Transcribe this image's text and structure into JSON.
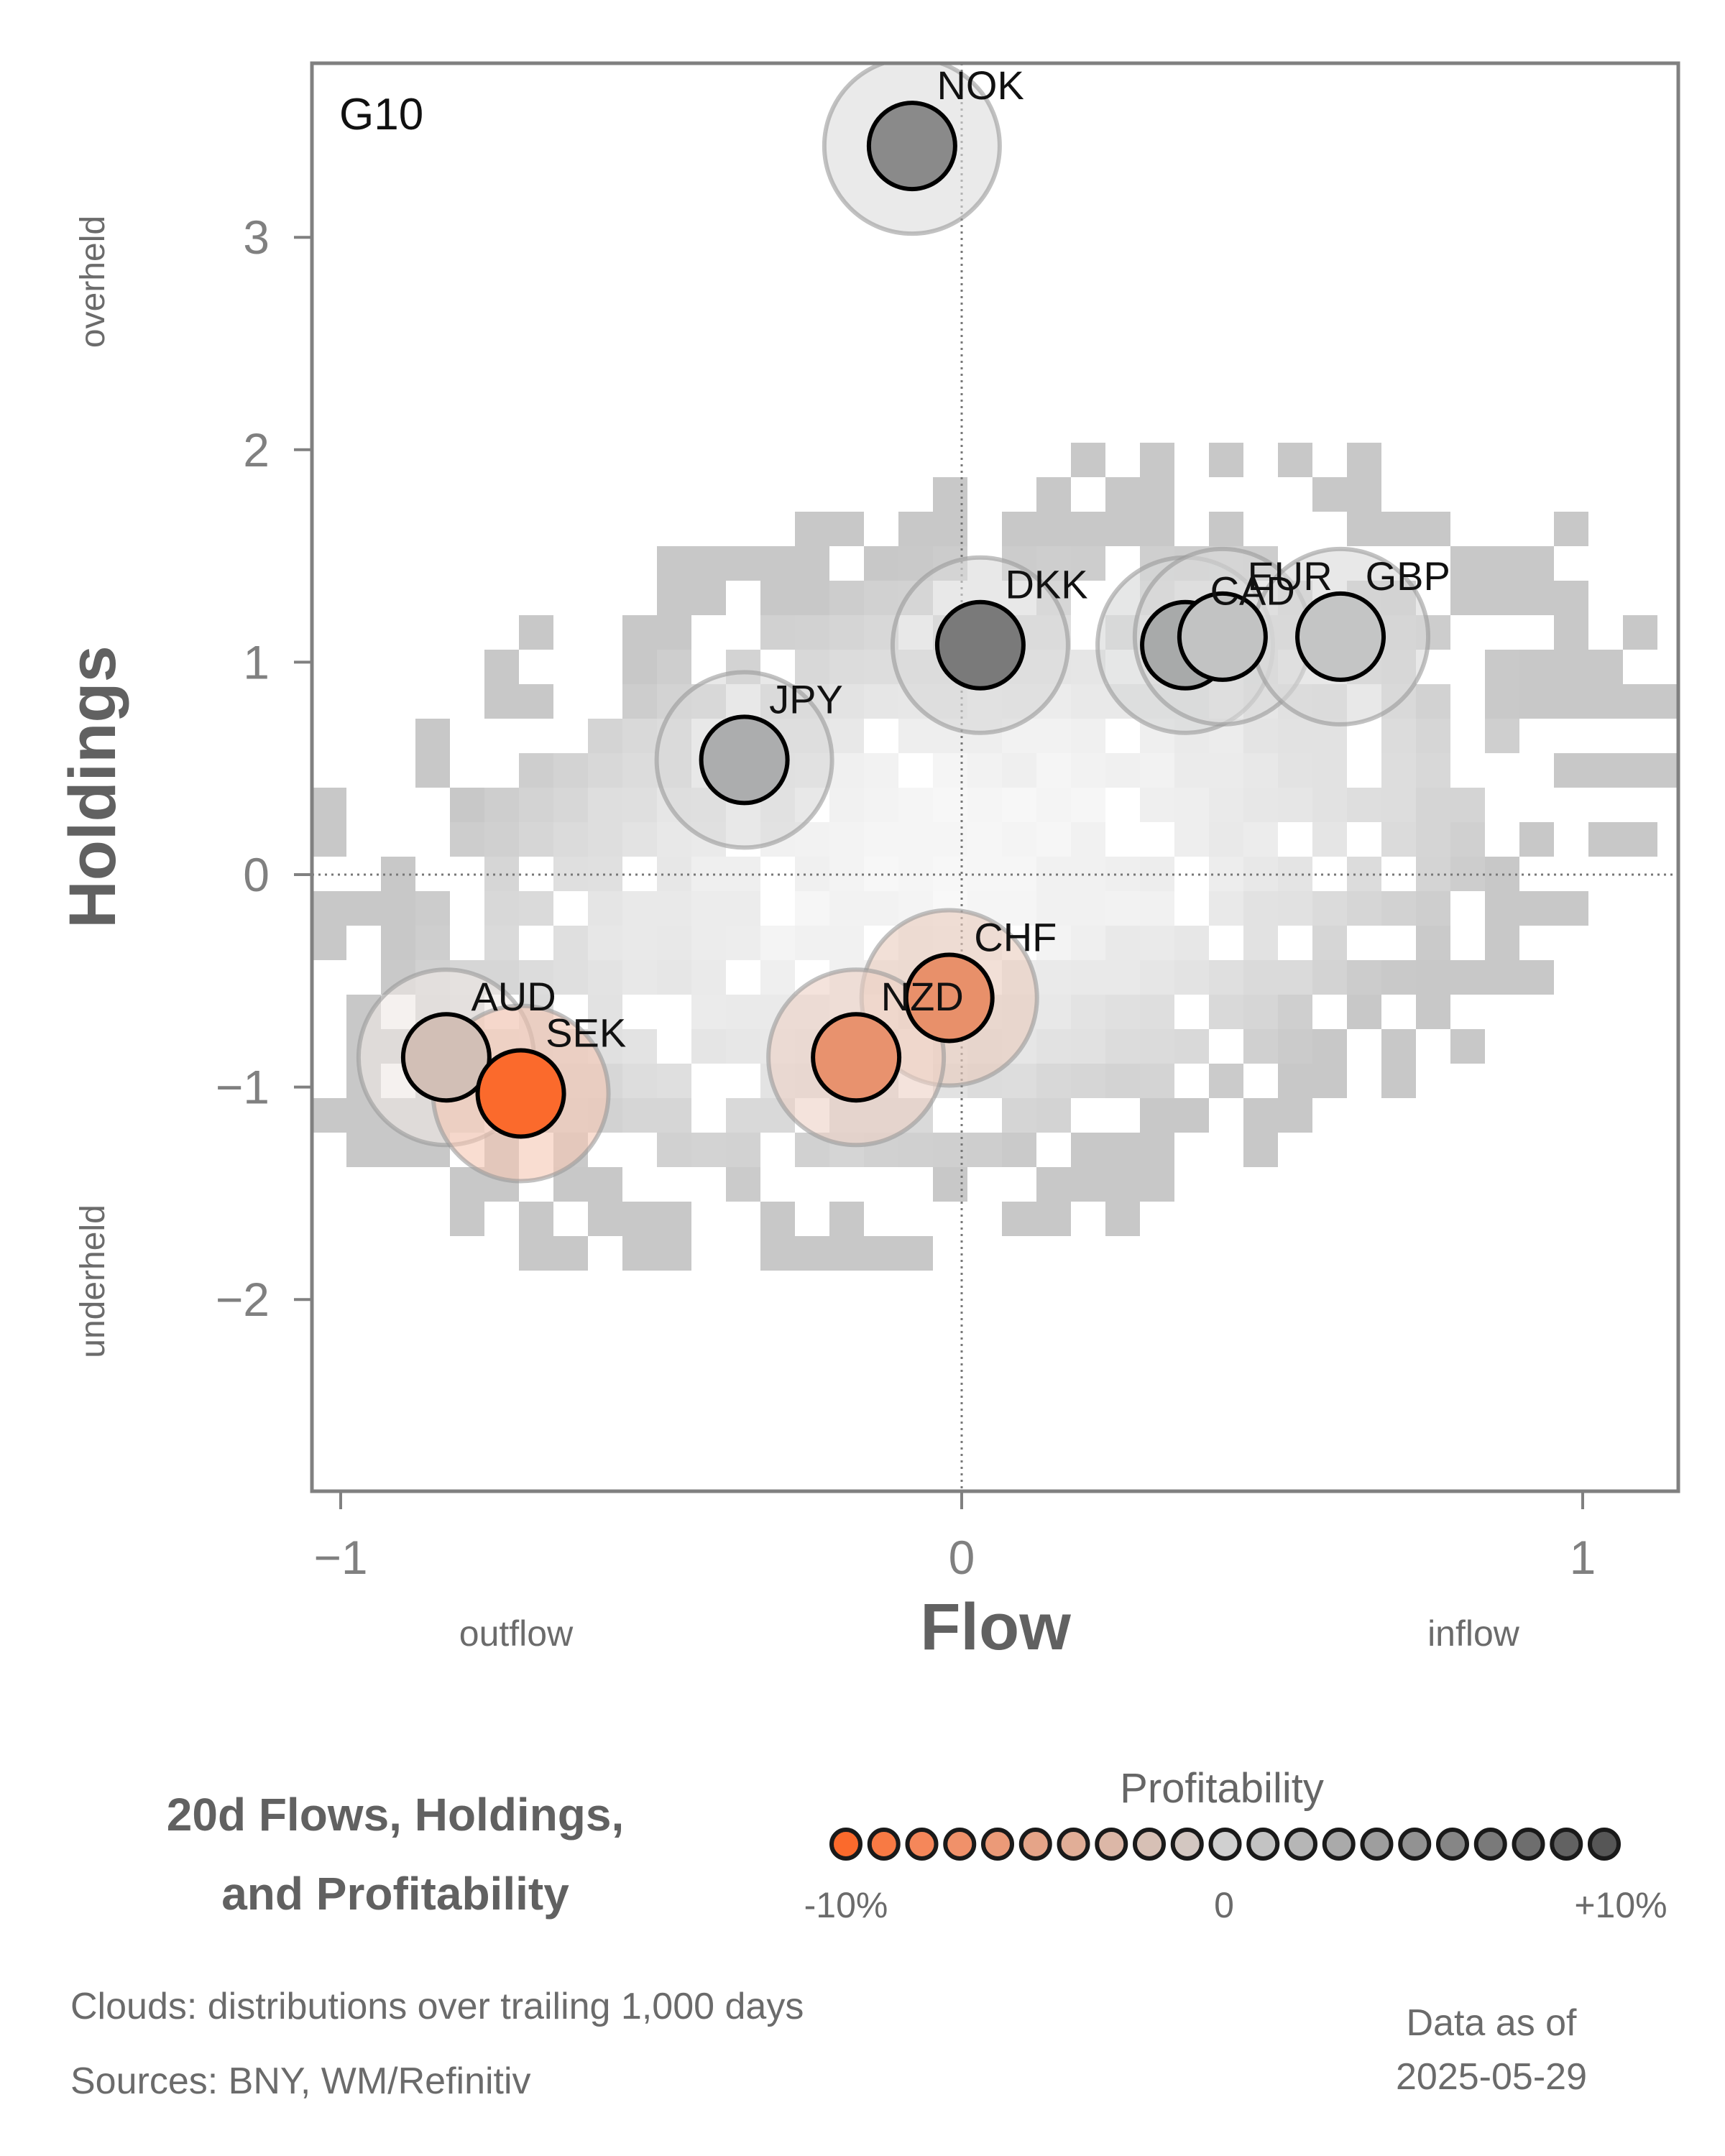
{
  "chart_data": {
    "type": "scatter",
    "title": "20d Flows, Holdings, and Profitability",
    "panel_label": "G10",
    "xlabel": "Flow",
    "ylabel": "Holdings",
    "x_direction_labels": {
      "negative": "outflow",
      "positive": "inflow"
    },
    "y_direction_labels": {
      "positive": "overheld",
      "negative": "underheld"
    },
    "xlim": [
      -1.05,
      1.15
    ],
    "ylim": [
      -2.9,
      3.82
    ],
    "xticks": [
      -1,
      0,
      1
    ],
    "xtick_labels": [
      "−1",
      "0",
      "1"
    ],
    "yticks": [
      -2,
      -1,
      0,
      1,
      2,
      3
    ],
    "ytick_labels": [
      "−2",
      "−1",
      "0",
      "1",
      "2",
      "3"
    ],
    "grid": false,
    "reference_lines": {
      "x": 0,
      "y": 0,
      "style": "dotted"
    },
    "points": [
      {
        "label": "NOK",
        "x": -0.08,
        "y": 3.43,
        "color": "#8a8a8a",
        "label_dx": 0.04,
        "label_dy": 0.22
      },
      {
        "label": "DKK",
        "x": 0.03,
        "y": 1.08,
        "color": "#7a7a7a",
        "label_dx": 0.04,
        "label_dy": 0.22
      },
      {
        "label": "CAD",
        "x": 0.36,
        "y": 1.08,
        "color": "#a8aaaa",
        "label_dx": 0.04,
        "label_dy": 0.19
      },
      {
        "label": "EUR",
        "x": 0.42,
        "y": 1.12,
        "color": "#c2c3c3",
        "label_dx": 0.04,
        "label_dy": 0.22
      },
      {
        "label": "GBP",
        "x": 0.61,
        "y": 1.12,
        "color": "#c4c5c5",
        "label_dx": 0.04,
        "label_dy": 0.22
      },
      {
        "label": "JPY",
        "x": -0.35,
        "y": 0.54,
        "color": "#acadae",
        "label_dx": 0.04,
        "label_dy": 0.22
      },
      {
        "label": "CHF",
        "x": -0.02,
        "y": -0.58,
        "color": "#e8906a",
        "label_dx": 0.04,
        "label_dy": 0.22
      },
      {
        "label": "NZD",
        "x": -0.17,
        "y": -0.86,
        "color": "#e8926e",
        "label_dx": 0.04,
        "label_dy": 0.22
      },
      {
        "label": "AUD",
        "x": -0.83,
        "y": -0.86,
        "color": "#d2bfb6",
        "label_dx": 0.04,
        "label_dy": 0.22
      },
      {
        "label": "SEK",
        "x": -0.71,
        "y": -1.03,
        "color": "#fb6a2c",
        "label_dx": 0.04,
        "label_dy": 0.22
      }
    ],
    "halo_colors": {
      "NOK": "#dcdcdc",
      "DKK": "#d9d9d9",
      "CAD": "#d6d7d7",
      "EUR": "#d8d9d9",
      "GBP": "#d8d9d9",
      "JPY": "#d8d9d9",
      "CHF": "#e9cbbd",
      "NZD": "#ecd1c4",
      "AUD": "#efe8e4",
      "SEK": "#f5c7b3"
    },
    "legend": {
      "title": "Profitability",
      "min_label": "-10%",
      "mid_label": "0",
      "max_label": "+10%",
      "swatches": [
        "#fb6a2c",
        "#f87a44",
        "#f5875a",
        "#f0916a",
        "#eb9a78",
        "#e5a488",
        "#e1ae97",
        "#dcb7a7",
        "#d7c0b5",
        "#d3c7c1",
        "#d0d0d0",
        "#c3c3c3",
        "#b6b6b6",
        "#aaaaaa",
        "#9e9e9e",
        "#929292",
        "#868686",
        "#7a7a7a",
        "#6e6e6e",
        "#626262",
        "#565656"
      ]
    },
    "background": "2D histogram clouds of trailing distributions (greyscale)"
  },
  "footer": {
    "clouds_note": "Clouds:  distributions over trailing 1,000 days",
    "sources_note": "Sources:  BNY, WM/Refinitiv",
    "data_as_of_label": "Data as of",
    "data_as_of_date": "2025-05-29"
  },
  "colors": {
    "axis": "#808080",
    "text": "#666666",
    "title": "#616161"
  }
}
